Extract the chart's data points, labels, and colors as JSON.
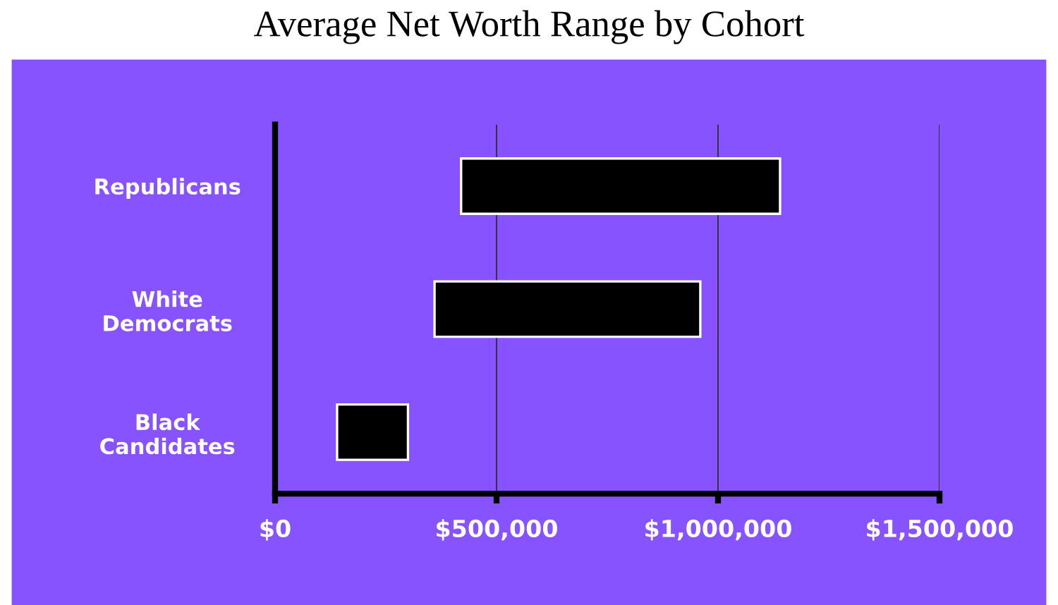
{
  "chart_data": {
    "type": "bar",
    "orientation": "horizontal",
    "title": "Average Net Worth Range by Cohort",
    "categories": [
      "Republicans",
      "White\nDemocrats",
      "Black\nCandidates"
    ],
    "base": [
      420000,
      360000,
      140000
    ],
    "values": [
      720000,
      600000,
      160000
    ],
    "color": "#000000",
    "xlim": [
      0,
      1500000
    ],
    "xticks": [
      {
        "value": 0,
        "label": "$0"
      },
      {
        "value": 500000,
        "label": "$500,000"
      },
      {
        "value": 1000000,
        "label": "$1,000,000"
      },
      {
        "value": 1500000,
        "label": "$1,500,000"
      }
    ],
    "grid": "x",
    "legend": false
  }
}
